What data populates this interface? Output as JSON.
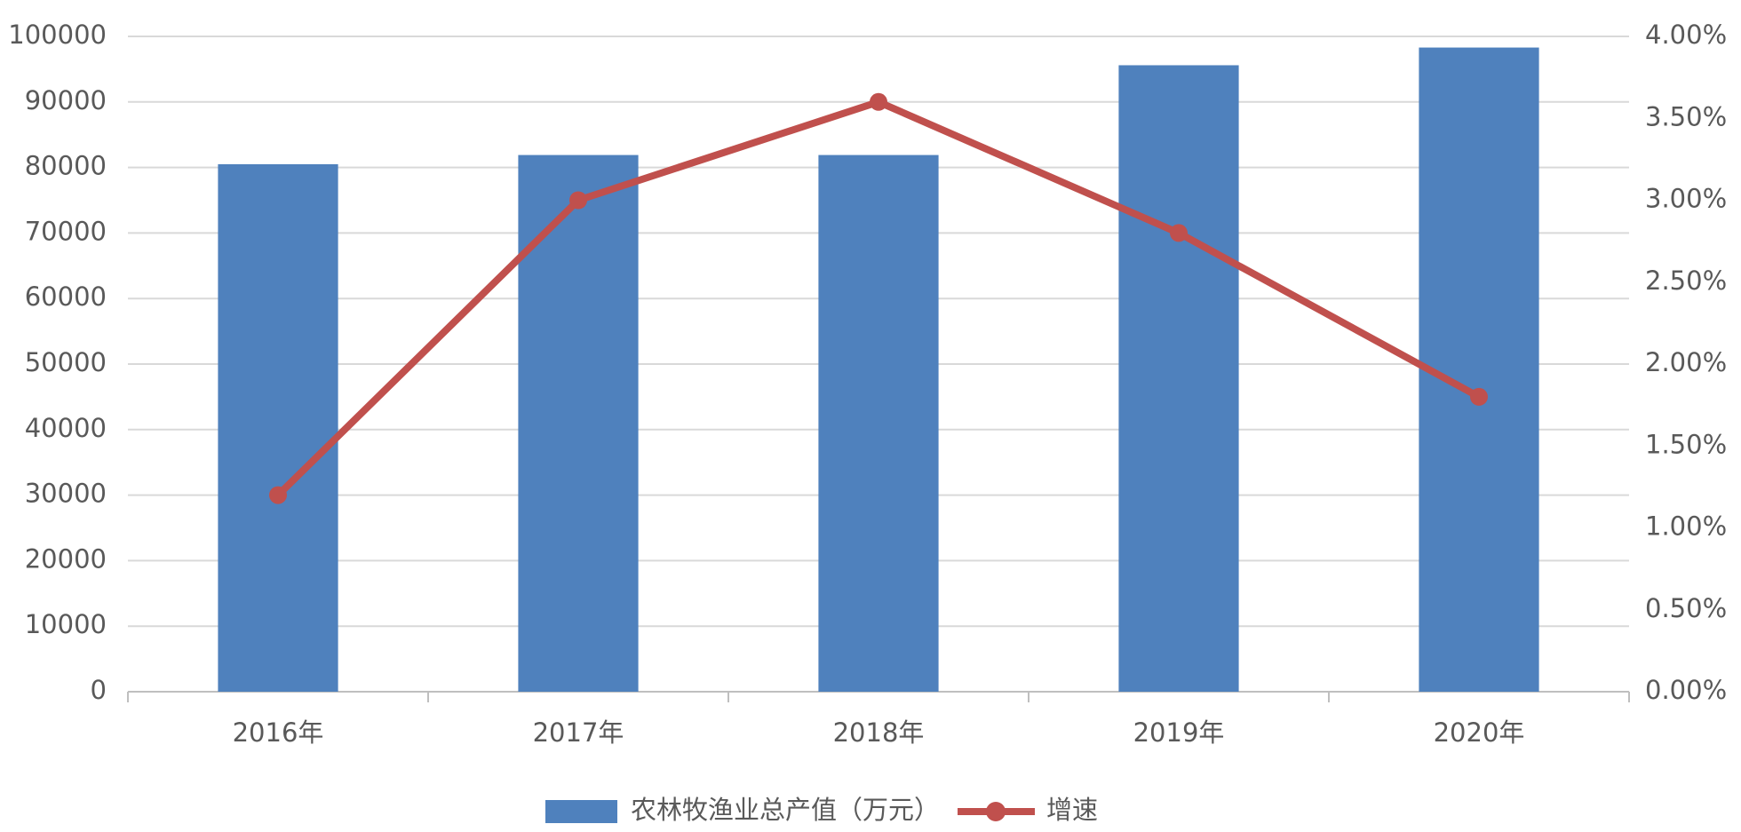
{
  "chart_data": {
    "type": "bar-line",
    "categories": [
      "2016年",
      "2017年",
      "2018年",
      "2019年",
      "2020年"
    ],
    "series": [
      {
        "name": "农林牧渔业总产值（万元）",
        "type": "bar",
        "color": "#4f81bd",
        "values": [
          80500,
          81900,
          81900,
          95600,
          98300
        ]
      },
      {
        "name": "增速",
        "type": "line",
        "axis": "y2",
        "color": "#c0504d",
        "values": [
          1.2,
          3.0,
          3.6,
          2.8,
          1.8
        ]
      }
    ],
    "ylim": [
      0,
      100000
    ],
    "yticks": [
      0,
      10000,
      20000,
      30000,
      40000,
      50000,
      60000,
      70000,
      80000,
      90000,
      100000
    ],
    "y2lim": [
      0,
      4
    ],
    "y2ticks": [
      {
        "value": 0,
        "label": "0.00%"
      },
      {
        "value": 0.5,
        "label": "0.50%"
      },
      {
        "value": 1,
        "label": "1.00%"
      },
      {
        "value": 1.5,
        "label": "1.50%"
      },
      {
        "value": 2,
        "label": "2.00%"
      },
      {
        "value": 2.5,
        "label": "2.50%"
      },
      {
        "value": 3,
        "label": "3.00%"
      },
      {
        "value": 3.5,
        "label": "3.50%"
      },
      {
        "value": 4,
        "label": "4.00%"
      }
    ],
    "grid": true,
    "legend": "bottom"
  }
}
